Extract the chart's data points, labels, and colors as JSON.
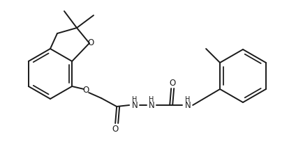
{
  "bg_color": "#ffffff",
  "line_color": "#1a1a1a",
  "line_width": 1.4,
  "figsize": [
    4.24,
    2.14
  ],
  "dpi": 100,
  "xlim": [
    0,
    424
  ],
  "ylim": [
    0,
    214
  ]
}
